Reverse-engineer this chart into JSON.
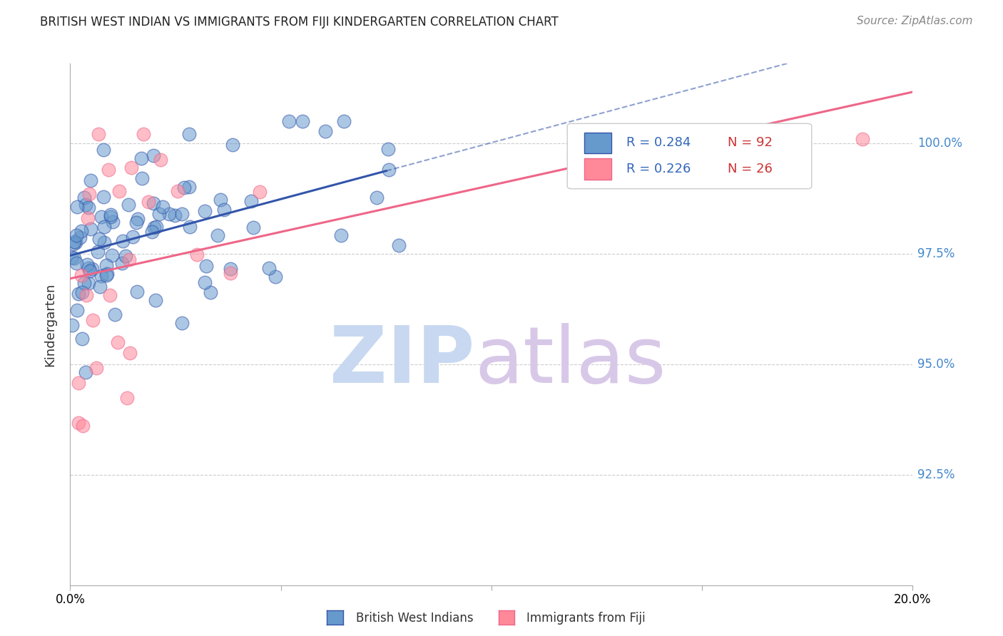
{
  "title": "BRITISH WEST INDIAN VS IMMIGRANTS FROM FIJI KINDERGARTEN CORRELATION CHART",
  "source": "Source: ZipAtlas.com",
  "ylabel": "Kindergarten",
  "legend_r1": "R = 0.284",
  "legend_n1": "N = 92",
  "legend_r2": "R = 0.226",
  "legend_n2": "N = 26",
  "blue_color": "#6699CC",
  "pink_color": "#FF8899",
  "blue_line_color": "#3355AA",
  "pink_line_color": "#EE6688",
  "watermark_zip_color": "#C8D8F0",
  "watermark_atlas_color": "#D8C8E8",
  "xlim": [
    0.0,
    20.0
  ],
  "ylim": [
    90.0,
    101.8
  ],
  "ytick_positions": [
    92.5,
    95.0,
    97.5,
    100.0
  ],
  "ytick_labels": [
    "92.5%",
    "95.0%",
    "97.5%",
    "100.0%"
  ],
  "bottom_legend": [
    "British West Indians",
    "Immigrants from Fiji"
  ]
}
